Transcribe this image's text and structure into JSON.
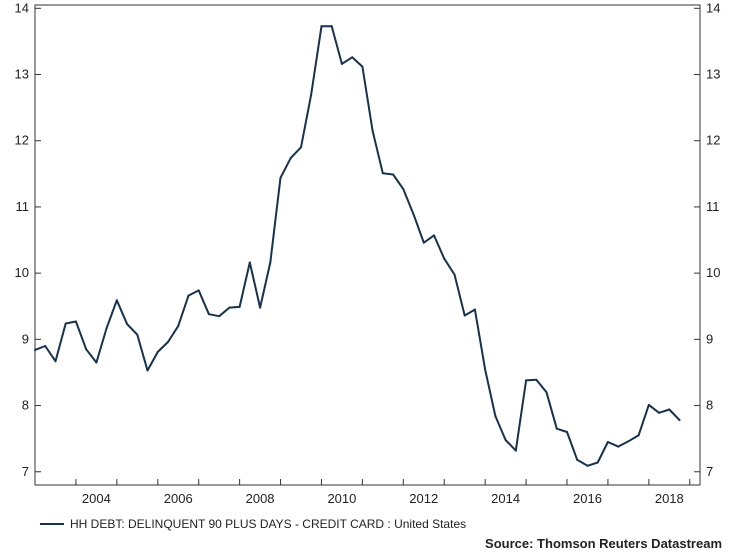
{
  "chart_data": {
    "type": "line",
    "title": "",
    "xlabel": "",
    "ylabel": "",
    "xlim": [
      2003.0,
      2019.25
    ],
    "ylim": [
      6.8,
      14.05
    ],
    "y_ticks": [
      7,
      8,
      9,
      10,
      11,
      12,
      13,
      14
    ],
    "x_ticks": [
      2004,
      2006,
      2008,
      2010,
      2012,
      2014,
      2016,
      2018
    ],
    "y_tick_labels": [
      "7",
      "8",
      "9",
      "10",
      "11",
      "12",
      "13",
      "14"
    ],
    "x_tick_labels": [
      "2004",
      "2006",
      "2008",
      "2010",
      "2012",
      "2014",
      "2016",
      "2018"
    ],
    "grid": false,
    "legend_position": "bottom-left",
    "line_color": "#17324d",
    "series": [
      {
        "name": "HH DEBT: DELINQUENT 90 PLUS DAYS - CREDIT CARD : United States",
        "x": [
          2003.0,
          2003.25,
          2003.5,
          2003.75,
          2004.0,
          2004.25,
          2004.5,
          2004.75,
          2005.0,
          2005.25,
          2005.5,
          2005.75,
          2006.0,
          2006.25,
          2006.5,
          2006.75,
          2007.0,
          2007.25,
          2007.5,
          2007.75,
          2008.0,
          2008.25,
          2008.5,
          2008.75,
          2009.0,
          2009.25,
          2009.5,
          2009.75,
          2010.0,
          2010.25,
          2010.5,
          2010.75,
          2011.0,
          2011.25,
          2011.5,
          2011.75,
          2012.0,
          2012.25,
          2012.5,
          2012.75,
          2013.0,
          2013.25,
          2013.5,
          2013.75,
          2014.0,
          2014.25,
          2014.5,
          2014.75,
          2015.0,
          2015.25,
          2015.5,
          2015.75,
          2016.0,
          2016.25,
          2016.5,
          2016.75,
          2017.0,
          2017.25,
          2017.5,
          2017.75,
          2018.0,
          2018.25,
          2018.5,
          2018.75
        ],
        "values": [
          8.84,
          8.9,
          8.67,
          9.24,
          9.27,
          8.85,
          8.65,
          9.17,
          9.59,
          9.23,
          9.07,
          8.53,
          8.81,
          8.96,
          9.2,
          9.66,
          9.74,
          9.38,
          9.35,
          9.48,
          9.49,
          10.16,
          9.48,
          10.16,
          11.44,
          11.74,
          11.9,
          12.7,
          13.73,
          13.73,
          13.16,
          13.26,
          13.12,
          12.15,
          11.51,
          11.49,
          11.27,
          10.89,
          10.46,
          10.57,
          10.22,
          9.98,
          9.36,
          9.45,
          8.54,
          7.84,
          7.48,
          7.32,
          8.38,
          8.39,
          8.2,
          7.65,
          7.6,
          7.18,
          7.09,
          7.14,
          7.45,
          7.38,
          7.46,
          7.55,
          8.01,
          7.89,
          7.94,
          7.78
        ]
      }
    ]
  },
  "legend": {
    "label": "HH DEBT: DELINQUENT 90 PLUS DAYS - CREDIT CARD : United States"
  },
  "source": {
    "text": "Source: Thomson Reuters Datastream"
  }
}
